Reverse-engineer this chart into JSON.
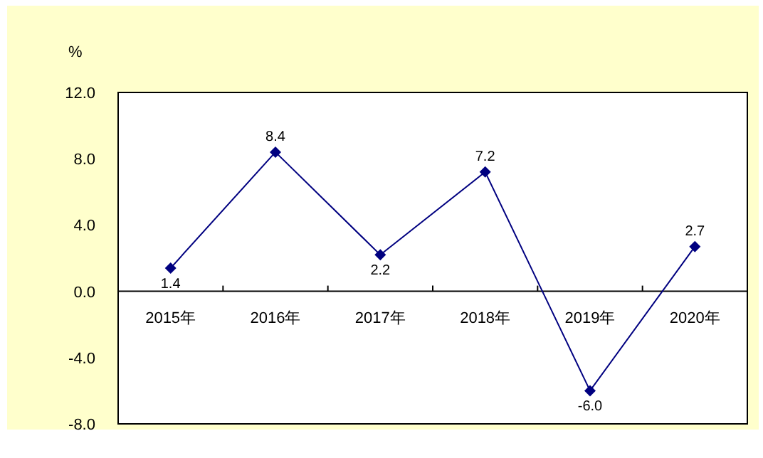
{
  "chart_data": {
    "type": "line",
    "ylabel": "%",
    "categories": [
      "2015年",
      "2016年",
      "2017年",
      "2018年",
      "2019年",
      "2020年"
    ],
    "series": [
      {
        "color": "#000080",
        "values": [
          1.4,
          8.4,
          2.2,
          7.2,
          -6.0,
          2.7
        ],
        "value_labels": [
          "1.4",
          "8.4",
          "2.2",
          "7.2",
          "-6.0",
          "2.7"
        ]
      }
    ],
    "ylim": [
      -8,
      12
    ],
    "yticks": [
      {
        "value": -8,
        "label": "-8.0"
      },
      {
        "value": -4,
        "label": "-4.0"
      },
      {
        "value": 0,
        "label": "0.0"
      },
      {
        "value": 4,
        "label": "4.0"
      },
      {
        "value": 8,
        "label": "8.0"
      },
      {
        "value": 12,
        "label": "12.0"
      }
    ],
    "marker": "diamond",
    "line_style": "solid",
    "grid": false
  }
}
